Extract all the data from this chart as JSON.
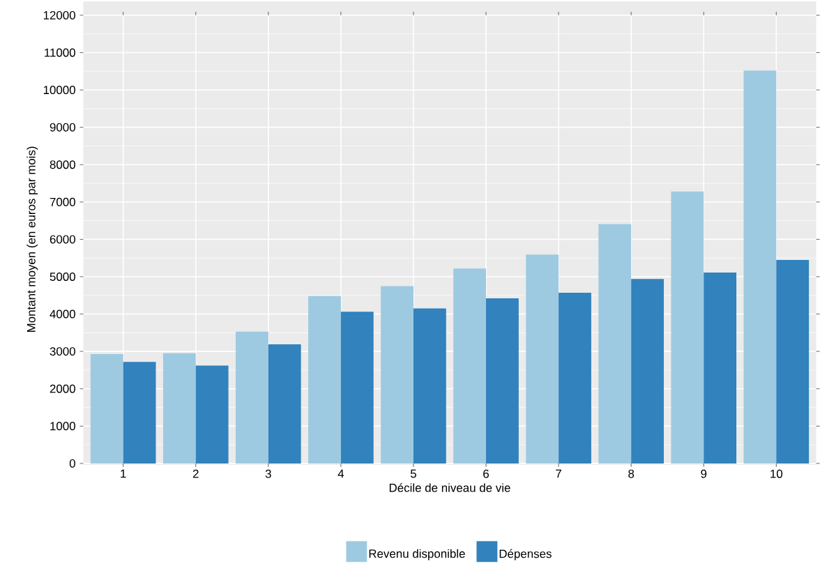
{
  "chart_data": {
    "type": "bar",
    "xlabel": "Décile de niveau de vie",
    "ylabel": "Montant moyen (en euros par mois)",
    "categories": [
      "1",
      "2",
      "3",
      "4",
      "5",
      "6",
      "7",
      "8",
      "9",
      "10"
    ],
    "series": [
      {
        "name": "Revenu disponible",
        "color": "#9ecae1",
        "values": [
          2930,
          2950,
          3530,
          4480,
          4750,
          5220,
          5590,
          6410,
          7280,
          10520
        ]
      },
      {
        "name": "Dépenses",
        "color": "#3182bd",
        "values": [
          2720,
          2620,
          3190,
          4060,
          4150,
          4420,
          4570,
          4940,
          5110,
          5450
        ]
      }
    ],
    "ylim": [
      0,
      12000
    ],
    "yticks": [
      0,
      1000,
      2000,
      3000,
      4000,
      5000,
      6000,
      7000,
      8000,
      9000,
      10000,
      11000,
      12000
    ],
    "grid": true,
    "legend": "bottom"
  }
}
